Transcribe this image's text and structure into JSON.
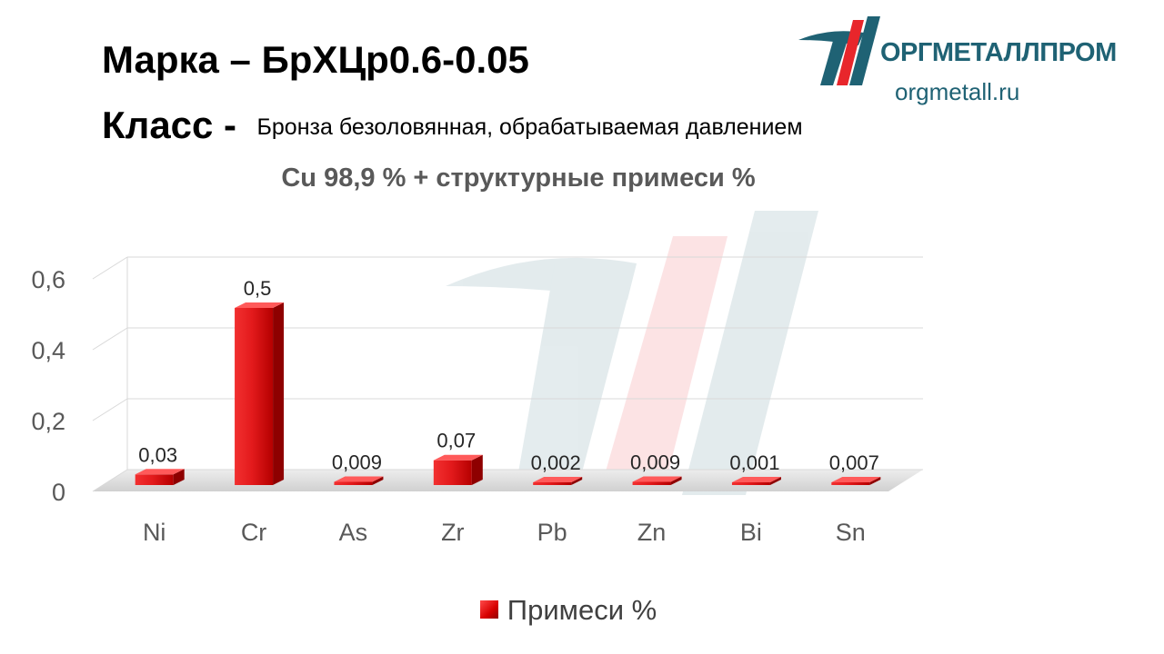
{
  "header": {
    "title": "Марка – БрХЦр0.6-0.05",
    "class_label": "Класс -",
    "class_value": "Бронза безоловянная, обрабатываемая давлением"
  },
  "logo": {
    "name": "ОРГМЕТАЛЛПРОМ",
    "url": "orgmetall.ru",
    "icon": "orgmetallprom-logo-icon",
    "colors": {
      "blue": "#1f6274",
      "red": "#e8262b"
    }
  },
  "colors": {
    "bar": "#e31a1c",
    "axis_text": "#595959",
    "grid": "#d9d9d9"
  },
  "chart_data": {
    "type": "bar",
    "title": "Cu 98,9 % + структурные примеси %",
    "categories": [
      "Ni",
      "Cr",
      "As",
      "Zr",
      "Pb",
      "Zn",
      "Bi",
      "Sn"
    ],
    "series": [
      {
        "name": "Примеси %",
        "values": [
          0.03,
          0.5,
          0.009,
          0.07,
          0.002,
          0.009,
          0.001,
          0.007
        ],
        "labels": [
          "0,03",
          "0,5",
          "0,009",
          "0,07",
          "0,002",
          "0,009",
          "0,001",
          "0,007"
        ]
      }
    ],
    "ylim": [
      0,
      0.6
    ],
    "yticks": [
      0,
      0.2,
      0.4,
      0.6
    ],
    "ytick_labels": [
      "0",
      "0,2",
      "0,4",
      "0,6"
    ],
    "xlabel": "",
    "ylabel": "",
    "grid": true,
    "legend_position": "bottom",
    "style": "3d"
  }
}
